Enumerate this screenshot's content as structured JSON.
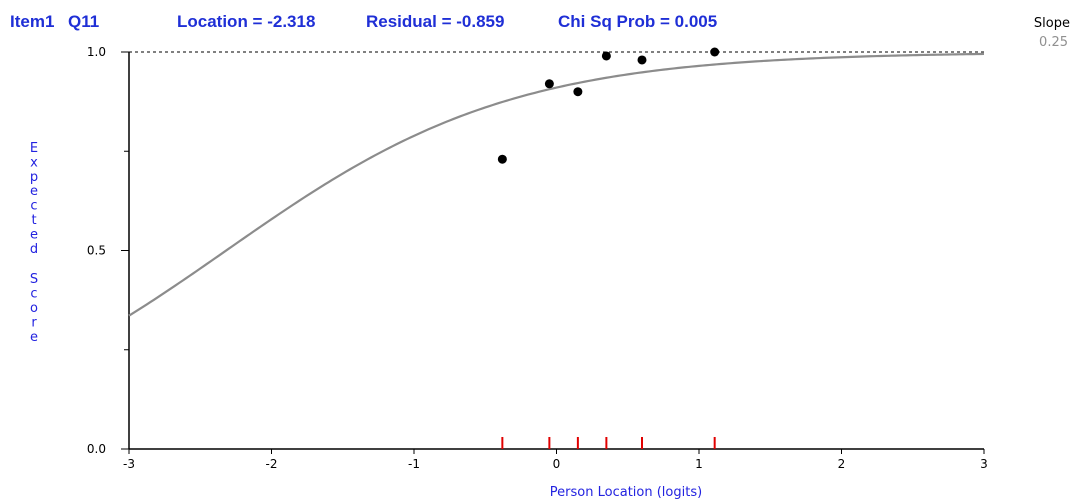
{
  "header": {
    "item": "Item1",
    "question": "Q11",
    "location": "Location = -2.318",
    "residual": "Residual = -0.859",
    "chisq": "Chi Sq Prob = 0.005"
  },
  "slope": {
    "label": "Slope",
    "value": "0.25"
  },
  "colors": {
    "header": "#1f2fd6",
    "axis_label": "#2323e0",
    "curve": "#8c8c8c",
    "points": "#000000",
    "rug": "#e00000",
    "slope_value": "#909090"
  },
  "chart_data": {
    "type": "line",
    "title": "",
    "xlabel": "Person Location (logits)",
    "ylabel": "Expected Score",
    "xlim": [
      -3,
      3
    ],
    "ylim": [
      0,
      1
    ],
    "x_ticks": [
      "-3",
      "-2",
      "-1",
      "0",
      "1",
      "2",
      "3"
    ],
    "y_ticks": [
      "0.0",
      "0.5",
      "1.0"
    ],
    "reference_line": {
      "y": 1.0,
      "style": "dashed"
    },
    "curve": {
      "type": "logistic",
      "location": -2.318,
      "scale": 1.0
    },
    "observed": {
      "x": [
        -0.38,
        -0.05,
        0.15,
        0.35,
        0.6,
        1.11
      ],
      "y": [
        0.73,
        0.92,
        0.9,
        0.99,
        0.98,
        1.0
      ]
    },
    "rug_x": [
      -0.38,
      -0.05,
      0.15,
      0.35,
      0.6,
      1.11
    ]
  }
}
